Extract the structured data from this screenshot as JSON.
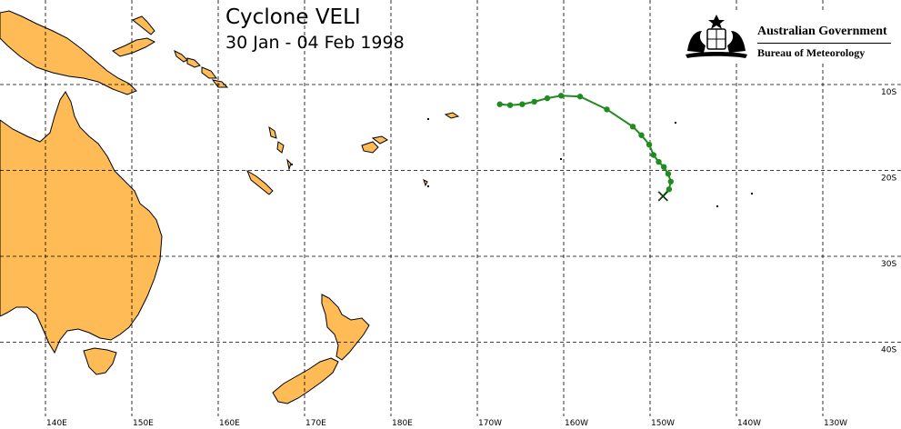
{
  "title": "Cyclone VELI",
  "dates": "30 Jan - 04 Feb 1998",
  "logo": {
    "line1": "Australian Government",
    "line2": "Bureau of Meteorology"
  },
  "longitude_labels": [
    "140E",
    "150E",
    "160E",
    "170E",
    "180E",
    "170W",
    "160W",
    "150W",
    "140W",
    "130W"
  ],
  "latitude_labels": [
    "10S",
    "20S",
    "30S",
    "40S"
  ],
  "colors": {
    "land": "#ffbb55",
    "track": "#1e8c1e",
    "grid": "#000000"
  },
  "track": {
    "points": [
      {
        "lon": -167.4,
        "lat": -12.3
      },
      {
        "lon": -166.2,
        "lat": -12.4
      },
      {
        "lon": -164.8,
        "lat": -12.3
      },
      {
        "lon": -163.4,
        "lat": -12.0
      },
      {
        "lon": -161.9,
        "lat": -11.6
      },
      {
        "lon": -160.3,
        "lat": -11.3
      },
      {
        "lon": -158.1,
        "lat": -11.4
      },
      {
        "lon": -155.0,
        "lat": -12.9
      },
      {
        "lon": -152.0,
        "lat": -14.9
      },
      {
        "lon": -151.0,
        "lat": -15.9
      },
      {
        "lon": -150.1,
        "lat": -17.0
      },
      {
        "lon": -149.6,
        "lat": -18.2
      },
      {
        "lon": -149.0,
        "lat": -19.0
      },
      {
        "lon": -148.4,
        "lat": -19.6
      },
      {
        "lon": -147.9,
        "lat": -20.4
      },
      {
        "lon": -147.6,
        "lat": -21.3
      },
      {
        "lon": -147.8,
        "lat": -22.2
      }
    ],
    "end": {
      "lon": -148.5,
      "lat": -23.0
    }
  }
}
